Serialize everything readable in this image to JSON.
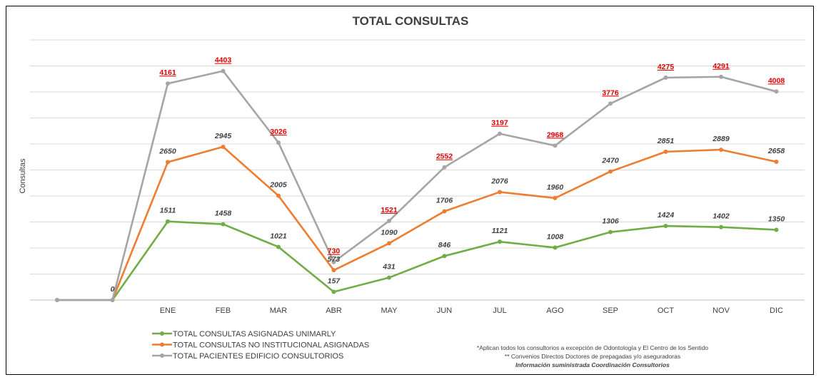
{
  "chart_data": {
    "type": "line",
    "title": "TOTAL CONSULTAS",
    "ylabel": "Consultas",
    "xlabel": "",
    "ylim": [
      0,
      5000
    ],
    "grid": true,
    "legend": "bottom-left",
    "categories": [
      "",
      "",
      "ENE",
      "FEB",
      "MAR",
      "ABR",
      "MAY",
      "JUN",
      "JUL",
      "AGO",
      "SEP",
      "OCT",
      "NOV",
      "DIC"
    ],
    "series": [
      {
        "name": "TOTAL CONSULTAS ASIGNADAS UNIMARLY",
        "color": "#70ad47",
        "values": [
          0,
          0,
          1511,
          1458,
          1021,
          157,
          431,
          846,
          1121,
          1008,
          1306,
          1424,
          1402,
          1350
        ],
        "labels": [
          "",
          "0",
          "1511",
          "1458",
          "1021",
          "157",
          "431",
          "846",
          "1121",
          "1008",
          "1306",
          "1424",
          "1402",
          "1350"
        ],
        "label_style": "dark"
      },
      {
        "name": "TOTAL CONSULTAS NO INSTITUCIONAL ASIGNADAS",
        "color": "#ed7d31",
        "values": [
          null,
          0,
          2650,
          2945,
          2005,
          573,
          1090,
          1706,
          2076,
          1960,
          2470,
          2851,
          2889,
          2658
        ],
        "labels": [
          "",
          "",
          "2650",
          "2945",
          "2005",
          "573",
          "1090",
          "1706",
          "2076",
          "1960",
          "2470",
          "2851",
          "2889",
          "2658"
        ],
        "label_style": "dark"
      },
      {
        "name": "TOTAL PACIENTES EDIFICIO CONSULTORIOS",
        "color": "#a5a5a5",
        "values": [
          0,
          0,
          4161,
          4403,
          3026,
          730,
          1521,
          2552,
          3197,
          2968,
          3776,
          4275,
          4291,
          4008
        ],
        "labels": [
          "",
          "",
          "4161",
          "4403",
          "3026",
          "730",
          "1521",
          "2552",
          "3197",
          "2968",
          "3776",
          "4275",
          "4291",
          "4008"
        ],
        "label_style": "red"
      }
    ]
  },
  "notes": {
    "line1": "*Aplican todos los consultorios a excepción de Odontología y El Centro de los Sentido",
    "line2": "** Convenios Directos Doctores de prepagadas y/o aseguradoras",
    "line3": "Información suministrada Coordinación Consultorios"
  }
}
